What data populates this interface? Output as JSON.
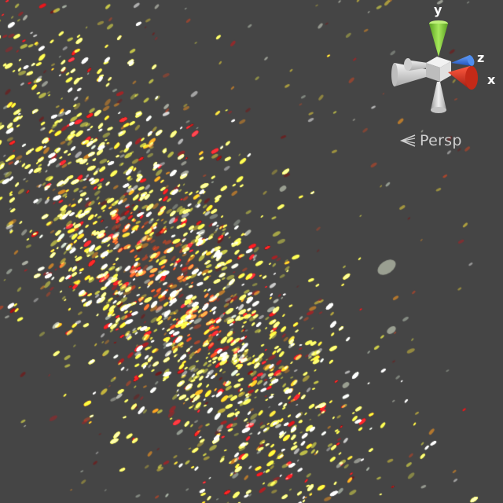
{
  "scene_view": {
    "background_color": "#454545",
    "content": "particle-system",
    "particle_colors": [
      "#f2f24a",
      "#e8d23a",
      "#ff9a1e",
      "#e2461e",
      "#c8161a",
      "#7a1010",
      "#e9eedc",
      "#c9d6c4",
      "#ffffff"
    ]
  },
  "gizmo": {
    "axis_y_label": "y",
    "axis_z_label": "z",
    "axis_x_label": "x",
    "colors": {
      "y": "#8fd43a",
      "z": "#3a7ce6",
      "x": "#d8301e",
      "neutral": "#d8d8d8"
    }
  },
  "projection": {
    "label": "Persp",
    "icon": "perspective-icon"
  }
}
